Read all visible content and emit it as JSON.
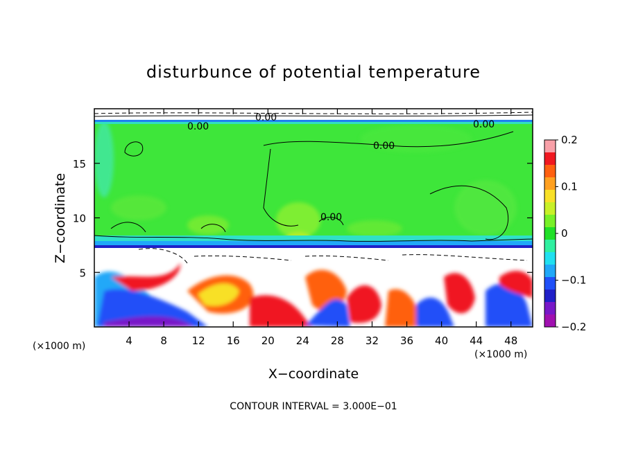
{
  "chart_data": {
    "type": "heatmap",
    "title": "disturbunce of potential temperature",
    "xlabel": "X−coordinate",
    "ylabel": "Z−coordinate",
    "x_unit": "(×1000 m)",
    "x_unit_right": "(×1000 m)",
    "footer": "CONTOUR INTERVAL = 3.000E−01",
    "xlim": [
      0,
      50.5
    ],
    "ylim": [
      0,
      20
    ],
    "x_ticks": [
      4,
      8,
      12,
      16,
      20,
      24,
      28,
      32,
      36,
      40,
      44,
      48
    ],
    "x_tick_labels": [
      "4",
      "8",
      "12",
      "16",
      "20",
      "24",
      "28",
      "32",
      "36",
      "40",
      "44",
      "48"
    ],
    "y_ticks": [
      5,
      10,
      15
    ],
    "y_tick_labels": [
      "5",
      "10",
      "15"
    ],
    "colorbar": {
      "range": [
        -0.2,
        0.2
      ],
      "ticks": [
        0.2,
        0.1,
        0,
        -0.1,
        -0.2
      ],
      "tick_labels": [
        "0.2",
        "0.1",
        "0",
        "−0.1",
        "−0.2"
      ],
      "colors": [
        "#f8a0a8",
        "#f01820",
        "#ff6010",
        "#ffa020",
        "#f8e028",
        "#c8f028",
        "#78f028",
        "#20e028",
        "#30f0a0",
        "#20e0f0",
        "#20a8f8",
        "#2050f8",
        "#2020c8",
        "#7818c8",
        "#a010b0"
      ]
    },
    "contour_labels": [
      {
        "text": "0.00",
        "x": 11.5,
        "z": 18.8
      },
      {
        "text": "0.00",
        "x": 33.0,
        "z": 16.6
      },
      {
        "text": "0.00",
        "x": 27.0,
        "z": 10.0
      },
      {
        "text": "0.00",
        "x": 45.5,
        "z": 18.7
      },
      {
        "text": "0.00",
        "x": 19.0,
        "z": 19.3
      }
    ],
    "features": {
      "stable_upper_layer_value": 0.02,
      "layer_interface_height": 7.2,
      "turbulent_lower_layer": "alternating positive and negative anomalies below z = 7"
    }
  }
}
